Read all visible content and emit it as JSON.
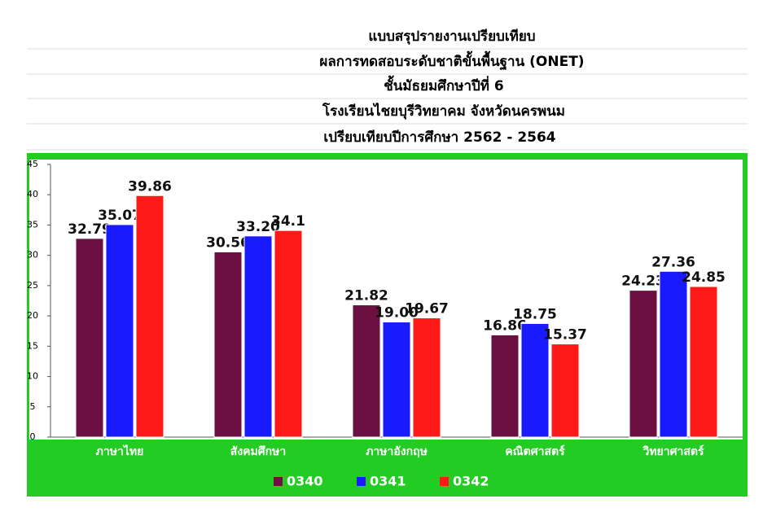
{
  "chart_data": {
    "type": "bar",
    "title": "แบบสรุปรายงานเปรียบเทียบ",
    "subtitles": [
      "ผลการทดสอบระดับชาติขั้นพื้นฐาน (ONET)",
      "ชั้นมัธยมศึกษาปีที่ 6",
      "โรงเรียนไชยบุรีวิทยาคม  จังหวัดนครพนม",
      "เปรียบเทียบปีการศึกษา 2562 - 2564"
    ],
    "categories": [
      "ภาษาไทย",
      "สังคมศึกษา",
      "ภาษาอังกฤษ",
      "คณิตศาสตร์",
      "วิทยาศาสตร์"
    ],
    "series": [
      {
        "name": "0340",
        "color": "#6b1040",
        "values": [
          32.79,
          30.56,
          21.82,
          16.86,
          24.23
        ]
      },
      {
        "name": "0341",
        "color": "#1a1aff",
        "values": [
          35.07,
          33.2,
          19.0,
          18.75,
          27.36
        ],
        "value_labels": [
          "35.07",
          "33.20",
          "19.00",
          "18.75",
          "27.36"
        ]
      },
      {
        "name": "0342",
        "color": "#ff1a1a",
        "values": [
          39.86,
          34.1,
          19.67,
          15.37,
          24.85
        ]
      }
    ],
    "ylim": [
      0,
      45
    ],
    "yticks": [
      0,
      5,
      10,
      15,
      20,
      25,
      30,
      35,
      40,
      45
    ],
    "legend": "bottom"
  }
}
